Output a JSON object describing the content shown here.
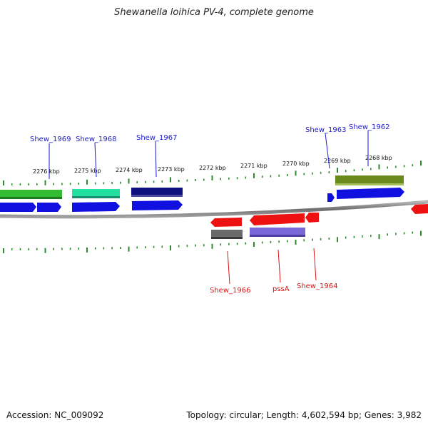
{
  "title": "Shewanella loihica PV-4, complete genome",
  "footer": {
    "accession": "Accession: NC_009092",
    "summary": "Topology: circular; Length: 4,602,594 bp; Genes: 3,982"
  },
  "colors": {
    "backbone": "#8a8a8a",
    "ticks": "#2e8b2e",
    "forward_label": "#1a1acc",
    "reverse_label": "#dd1111"
  },
  "ruler": [
    "2276 kbp",
    "2275 kbp",
    "2274 kbp",
    "2273 kbp",
    "2272 kbp",
    "2271 kbp",
    "2270 kbp",
    "2269 kbp",
    "2268 kbp"
  ],
  "gene_labels_top": [
    "Shew_1969",
    "Shew_1968",
    "Shew_1967",
    "Shew_1963",
    "Shew_1962"
  ],
  "gene_labels_bottom": [
    "Shew_1966",
    "pssA",
    "Shew_1964"
  ]
}
